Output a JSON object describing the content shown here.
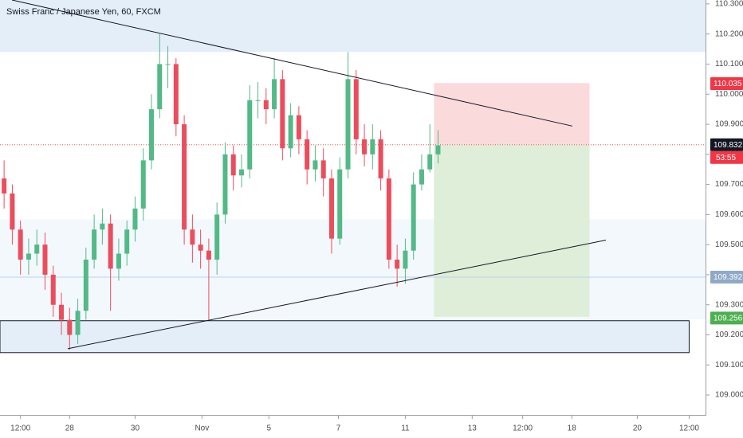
{
  "chart_data": {
    "type": "candlestick",
    "title": "Swiss Franc / Japanese Yen, 60, FXCM",
    "up_color": "#53b987",
    "down_color": "#eb4d5c",
    "xlim": [
      0,
      517
    ],
    "ylim": [
      108.934,
      110.313
    ],
    "xticks": [
      {
        "value": 15,
        "label": "12:00"
      },
      {
        "value": 51,
        "label": "28"
      },
      {
        "value": 99,
        "label": "30"
      },
      {
        "value": 148,
        "label": "Nov"
      },
      {
        "value": 197,
        "label": "5"
      },
      {
        "value": 248,
        "label": "7"
      },
      {
        "value": 297,
        "label": "11"
      },
      {
        "value": 346,
        "label": "13"
      },
      {
        "value": 383,
        "label": "12:00"
      },
      {
        "value": 419,
        "label": "18"
      },
      {
        "value": 467,
        "label": "20"
      },
      {
        "value": 505,
        "label": "12:00"
      }
    ],
    "yticks": [
      {
        "value": 110.3,
        "label": "110.300"
      },
      {
        "value": 110.2,
        "label": "110.200"
      },
      {
        "value": 110.1,
        "label": "110.100"
      },
      {
        "value": 110,
        "label": "110.000"
      },
      {
        "value": 109.9,
        "label": "109.900"
      },
      {
        "value": 109.8,
        "label": "109.800"
      },
      {
        "value": 109.7,
        "label": "109.700"
      },
      {
        "value": 109.6,
        "label": "109.600"
      },
      {
        "value": 109.5,
        "label": "109.500"
      },
      {
        "value": 109.4,
        "label": "109.400"
      },
      {
        "value": 109.3,
        "label": "109.300"
      },
      {
        "value": 109.2,
        "label": "109.200"
      },
      {
        "value": 109.1,
        "label": "109.100"
      },
      {
        "value": 109,
        "label": "109.000"
      }
    ],
    "x": [
      3,
      9,
      15,
      21,
      27,
      33,
      39,
      45,
      51,
      57,
      63,
      69,
      75,
      81,
      87,
      93,
      99,
      105,
      111,
      117,
      123,
      129,
      135,
      141,
      147,
      153,
      159,
      165,
      171,
      177,
      183,
      189,
      195,
      201,
      207,
      213,
      219,
      225,
      231,
      237,
      243,
      249,
      255,
      261,
      267,
      273,
      279,
      285,
      291,
      297,
      303,
      309,
      315,
      321
    ],
    "open": [
      109.72,
      109.67,
      109.55,
      109.45,
      109.47,
      109.5,
      109.4,
      109.3,
      109.25,
      109.2,
      109.28,
      109.45,
      109.55,
      109.57,
      109.42,
      109.47,
      109.55,
      109.62,
      109.78,
      109.95,
      110.1,
      110.1,
      109.9,
      109.55,
      109.5,
      109.48,
      109.45,
      109.6,
      109.8,
      109.73,
      109.75,
      109.98,
      109.98,
      109.95,
      110.05,
      109.82,
      109.93,
      109.85,
      109.75,
      109.78,
      109.72,
      109.52,
      109.75,
      110.05,
      109.85,
      109.8,
      109.85,
      109.72,
      109.45,
      109.42,
      109.48,
      109.7,
      109.75,
      109.8
    ],
    "high": [
      109.78,
      109.7,
      109.58,
      109.52,
      109.55,
      109.54,
      109.43,
      109.34,
      109.29,
      109.32,
      109.49,
      109.6,
      109.62,
      109.6,
      109.52,
      109.58,
      109.66,
      109.82,
      110.0,
      110.2,
      110.16,
      110.12,
      109.93,
      109.6,
      109.55,
      109.52,
      109.64,
      109.84,
      109.83,
      109.8,
      110.03,
      110.04,
      110.02,
      110.12,
      110.08,
      109.97,
      109.96,
      109.88,
      109.83,
      109.82,
      109.75,
      109.79,
      110.14,
      110.08,
      109.9,
      109.9,
      109.88,
      109.75,
      109.5,
      109.52,
      109.74,
      109.8,
      109.9,
      109.88
    ],
    "low": [
      109.62,
      109.5,
      109.4,
      109.4,
      109.43,
      109.35,
      109.26,
      109.2,
      109.15,
      109.17,
      109.25,
      109.42,
      109.5,
      109.28,
      109.38,
      109.43,
      109.51,
      109.58,
      109.75,
      109.92,
      110.02,
      109.86,
      109.5,
      109.44,
      109.42,
      109.25,
      109.4,
      109.57,
      109.68,
      109.69,
      109.72,
      109.92,
      109.9,
      109.92,
      109.78,
      109.79,
      109.8,
      109.7,
      109.71,
      109.66,
      109.47,
      109.5,
      109.72,
      109.8,
      109.76,
      109.75,
      109.68,
      109.42,
      109.36,
      109.37,
      109.45,
      109.68,
      109.74,
      109.77
    ],
    "close": [
      109.67,
      109.55,
      109.45,
      109.47,
      109.5,
      109.4,
      109.3,
      109.25,
      109.2,
      109.28,
      109.45,
      109.55,
      109.57,
      109.42,
      109.47,
      109.55,
      109.62,
      109.78,
      109.95,
      110.1,
      110.1,
      109.9,
      109.55,
      109.5,
      109.48,
      109.45,
      109.6,
      109.8,
      109.73,
      109.75,
      109.98,
      109.98,
      109.95,
      110.05,
      109.82,
      109.93,
      109.85,
      109.75,
      109.78,
      109.72,
      109.52,
      109.75,
      110.05,
      109.85,
      109.8,
      109.85,
      109.72,
      109.45,
      109.42,
      109.48,
      109.7,
      109.75,
      109.8,
      109.83
    ],
    "zones": [
      {
        "x": [
          0,
          517
        ],
        "y": [
          110.313,
          110.141
        ],
        "color": "#e3eef9",
        "border": "none"
      },
      {
        "x": [
          0,
          517
        ],
        "y": [
          109.584,
          109.252
        ],
        "color": "#f3f8fd",
        "border": "none"
      },
      {
        "x": [
          0,
          505
        ],
        "y": [
          109.247,
          109.141
        ],
        "color": "#e3eef9",
        "border": "#131722"
      },
      {
        "x": [
          318,
          432
        ],
        "y": [
          110.037,
          109.833
        ],
        "color": "#fbdadc",
        "border": "none"
      },
      {
        "x": [
          318,
          432
        ],
        "y": [
          109.833,
          109.26
        ],
        "color": "#deeed9",
        "border": "none"
      }
    ],
    "trendlines": [
      {
        "x": [
          8.8,
          419.4
        ],
        "y": [
          110.313,
          109.894
        ],
        "color": "#131722"
      },
      {
        "x": [
          49.6,
          444
        ],
        "y": [
          109.154,
          109.515
        ],
        "color": "#131722"
      }
    ],
    "price_labels": [
      {
        "value": 110.035,
        "color": "#f23645"
      },
      {
        "value": 109.832,
        "color": "#131722",
        "line": "dotted",
        "line_color": "#ef5350",
        "countdown": "53:55",
        "countdown_color": "#f23645"
      },
      {
        "value": 109.392,
        "color": "#8fa9c7",
        "line": "solid",
        "line_color": "#bbd2ea"
      },
      {
        "value": 109.256,
        "color": "#4caf50"
      }
    ]
  }
}
